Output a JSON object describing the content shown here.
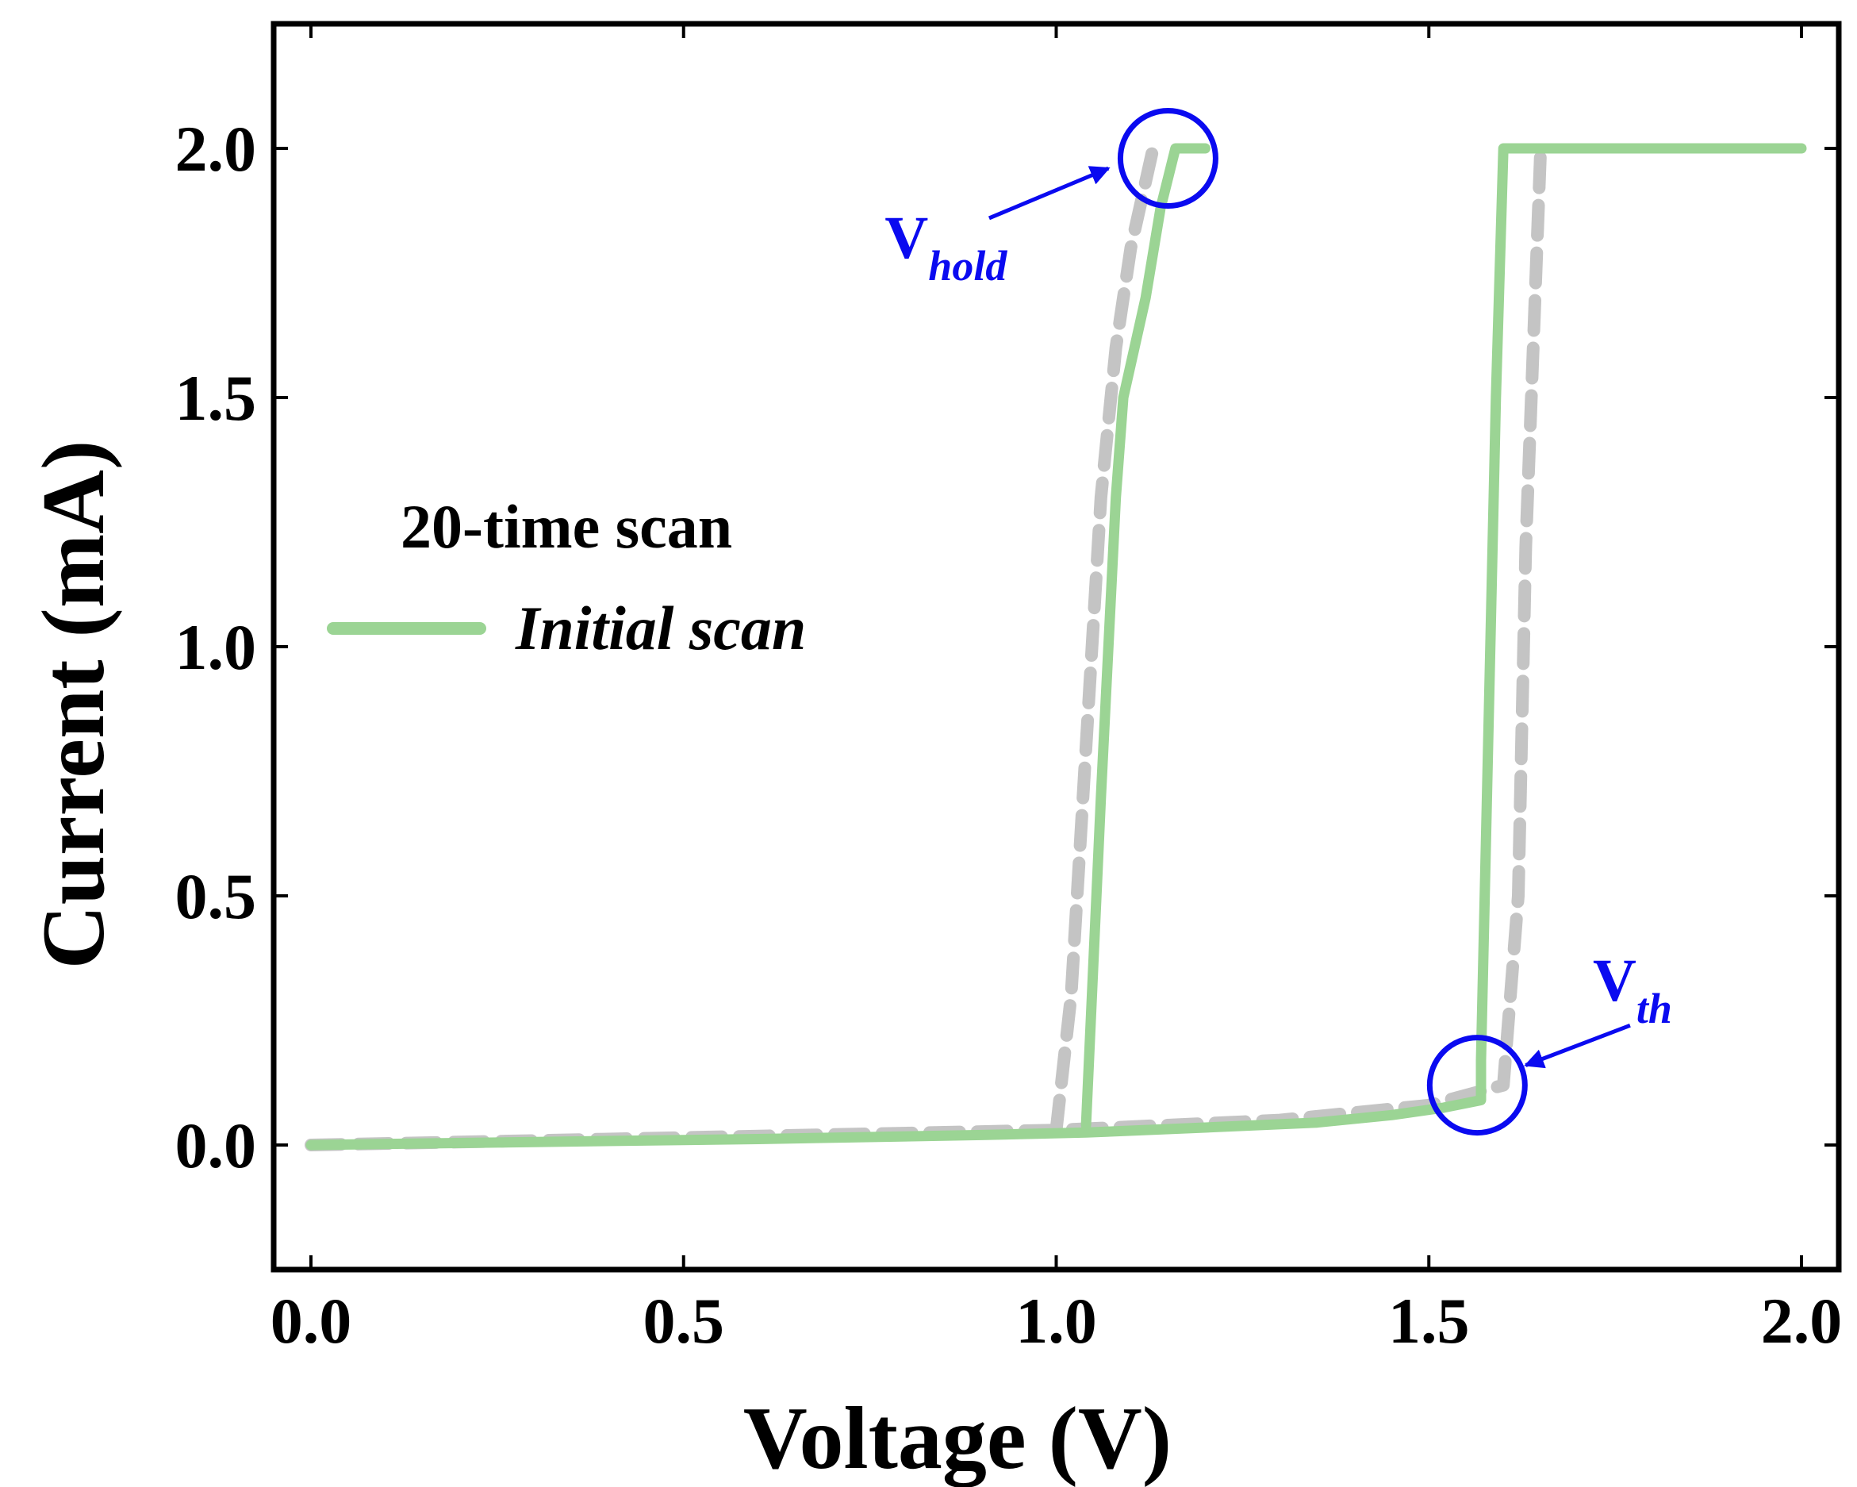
{
  "chart_data": {
    "type": "line",
    "title": "",
    "xlabel": "Voltage (V)",
    "ylabel": "Current (mA)",
    "xlim": [
      -0.05,
      2.05
    ],
    "ylim": [
      -0.25,
      2.25
    ],
    "xticks": [
      "0.0",
      "0.5",
      "1.0",
      "1.5",
      "2.0"
    ],
    "xtick_values": [
      0,
      0.5,
      1.0,
      1.5,
      2.0
    ],
    "yticks": [
      "0.0",
      "0.5",
      "1.0",
      "1.5",
      "2.0"
    ],
    "ytick_values": [
      0,
      0.5,
      1.0,
      1.5,
      2.0
    ],
    "grid": false,
    "legend": {
      "position": "left-middle",
      "title": "20-time scan",
      "entries": [
        "Initial scan"
      ]
    },
    "series": [
      {
        "name": "20-time scan",
        "style": "dashed",
        "color": "#c4c4c4",
        "branches": [
          {
            "x": [
              0.0,
              1.0,
              1.3,
              1.5,
              1.6,
              1.62,
              1.63,
              1.65
            ],
            "y": [
              0.0,
              0.03,
              0.05,
              0.08,
              0.12,
              0.5,
              1.2,
              2.0
            ]
          },
          {
            "x": [
              1.0,
              1.02,
              1.04,
              1.06,
              1.08,
              1.1,
              1.13
            ],
            "y": [
              0.03,
              0.3,
              0.8,
              1.3,
              1.6,
              1.8,
              2.0
            ]
          }
        ]
      },
      {
        "name": "Initial scan",
        "style": "solid",
        "color": "#9bd494",
        "branches": [
          {
            "x": [
              0.0,
              0.3,
              0.6,
              0.9,
              1.04,
              1.2,
              1.35,
              1.45,
              1.52,
              1.57,
              1.57,
              1.575,
              1.59,
              1.6,
              2.0
            ],
            "y": [
              0.0,
              0.006,
              0.012,
              0.02,
              0.025,
              0.035,
              0.045,
              0.06,
              0.075,
              0.09,
              0.17,
              0.5,
              1.5,
              2.0,
              2.0
            ]
          },
          {
            "x": [
              1.04,
              1.06,
              1.08,
              1.09,
              1.12,
              1.14,
              1.16,
              1.2
            ],
            "y": [
              0.04,
              0.7,
              1.3,
              1.5,
              1.7,
              1.88,
              2.0,
              2.0
            ]
          }
        ]
      }
    ],
    "annotations": [
      {
        "name": "hold",
        "label": "V",
        "subscript": "hold",
        "color": "#0a0af0",
        "circle_at": [
          1.15,
          1.98
        ],
        "arrow_from": [
          0.91,
          1.86
        ],
        "arrow_to": [
          1.07,
          1.96
        ],
        "text_at": [
          0.77,
          1.78
        ]
      },
      {
        "name": "th",
        "label": "V",
        "subscript": "th",
        "color": "#0a0af0",
        "circle_at": [
          1.565,
          0.12
        ],
        "arrow_from": [
          1.77,
          0.24
        ],
        "arrow_to": [
          1.63,
          0.16
        ],
        "text_at": [
          1.72,
          0.29
        ]
      }
    ]
  }
}
